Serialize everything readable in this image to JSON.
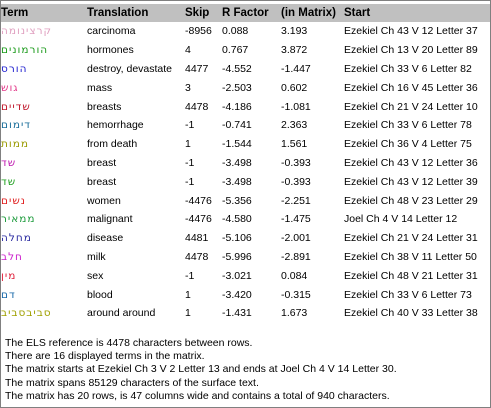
{
  "headers": {
    "term": "Term",
    "translation": "Translation",
    "skip": "Skip",
    "rfactor": "R Factor",
    "inmatrix": "(in Matrix)",
    "start": "Start"
  },
  "rows": [
    {
      "term": "קרצינומה",
      "color": "#e0a0c0",
      "translation": "carcinoma",
      "skip": "-8956",
      "rfactor": "0.088",
      "inmatrix": "3.193",
      "start": "Ezekiel Ch 43 V 12 Letter 37"
    },
    {
      "term": "הורמונים",
      "color": "#1a9a1a",
      "translation": "hormones",
      "skip": "4",
      "rfactor": "0.767",
      "inmatrix": "3.872",
      "start": "Ezekiel Ch 13 V 20 Letter 89"
    },
    {
      "term": "הורס",
      "color": "#1f1fcf",
      "translation": "destroy, devastate",
      "skip": "4477",
      "rfactor": "-4.552",
      "inmatrix": "-1.447",
      "start": "Ezekiel Ch 33 V 6 Letter 82"
    },
    {
      "term": "גוש",
      "color": "#e23a8a",
      "translation": "mass",
      "skip": "3",
      "rfactor": "-2.503",
      "inmatrix": "0.602",
      "start": "Ezekiel Ch 16 V 45 Letter 36"
    },
    {
      "term": "שדיים",
      "color": "#c0162a",
      "translation": "breasts",
      "skip": "4478",
      "rfactor": "-4.186",
      "inmatrix": "-1.081",
      "start": "Ezekiel Ch 21 V 24 Letter 10"
    },
    {
      "term": "דימום",
      "color": "#1a6e9a",
      "translation": "hemorrhage",
      "skip": "-1",
      "rfactor": "-0.741",
      "inmatrix": "2.363",
      "start": "Ezekiel Ch 33 V 6 Letter 78"
    },
    {
      "term": "ממות",
      "color": "#9a9a00",
      "translation": "from death",
      "skip": "1",
      "rfactor": "-1.544",
      "inmatrix": "1.561",
      "start": "Ezekiel Ch 36 V 4 Letter 75"
    },
    {
      "term": "שד",
      "color": "#c01bb0",
      "translation": "breast",
      "skip": "-1",
      "rfactor": "-3.498",
      "inmatrix": "-0.393",
      "start": "Ezekiel Ch 43 V 12 Letter 36"
    },
    {
      "term": "שד",
      "color": "#20a020",
      "translation": "breast",
      "skip": "-1",
      "rfactor": "-3.498",
      "inmatrix": "-0.393",
      "start": "Ezekiel Ch 43 V 12 Letter 39"
    },
    {
      "term": "נשים",
      "color": "#e02020",
      "translation": "women",
      "skip": "-4476",
      "rfactor": "-5.356",
      "inmatrix": "-2.251",
      "start": "Ezekiel Ch 48 V 23 Letter 29"
    },
    {
      "term": "ממאיר",
      "color": "#1a9a3a",
      "translation": "malignant",
      "skip": "-4476",
      "rfactor": "-4.580",
      "inmatrix": "-1.475",
      "start": "Joel Ch 4 V 14 Letter 12"
    },
    {
      "term": "מחלה",
      "color": "#2a2aa0",
      "translation": "disease",
      "skip": "4481",
      "rfactor": "-5.106",
      "inmatrix": "-2.001",
      "start": "Ezekiel Ch 21 V 24 Letter 31"
    },
    {
      "term": "חלב",
      "color": "#cc20cc",
      "translation": "milk",
      "skip": "4478",
      "rfactor": "-5.996",
      "inmatrix": "-2.891",
      "start": "Ezekiel Ch 38 V 11 Letter 50"
    },
    {
      "term": "מין",
      "color": "#e0203a",
      "translation": "sex",
      "skip": "-1",
      "rfactor": "-3.021",
      "inmatrix": "0.084",
      "start": "Ezekiel Ch 48 V 21 Letter 31"
    },
    {
      "term": "דם",
      "color": "#1a6aaa",
      "translation": "blood",
      "skip": "1",
      "rfactor": "-3.420",
      "inmatrix": "-0.315",
      "start": "Ezekiel Ch 33 V 6 Letter 73"
    },
    {
      "term": "סביבסביב",
      "color": "#a0a000",
      "translation": "around around",
      "skip": "1",
      "rfactor": "-1.431",
      "inmatrix": "1.673",
      "start": "Ezekiel Ch 40 V 33 Letter 38"
    }
  ],
  "notes": [
    "The ELS reference is 4478 characters between rows.",
    "There are 16 displayed terms in the matrix.",
    "The matrix starts at Ezekiel Ch 3 V 2 Letter 13 and ends at Joel Ch 4 V 14 Letter 30.",
    "The matrix spans 85129 characters of the surface text.",
    "The matrix has 20 rows, is 47 columns wide and contains a total of 940 characters."
  ]
}
